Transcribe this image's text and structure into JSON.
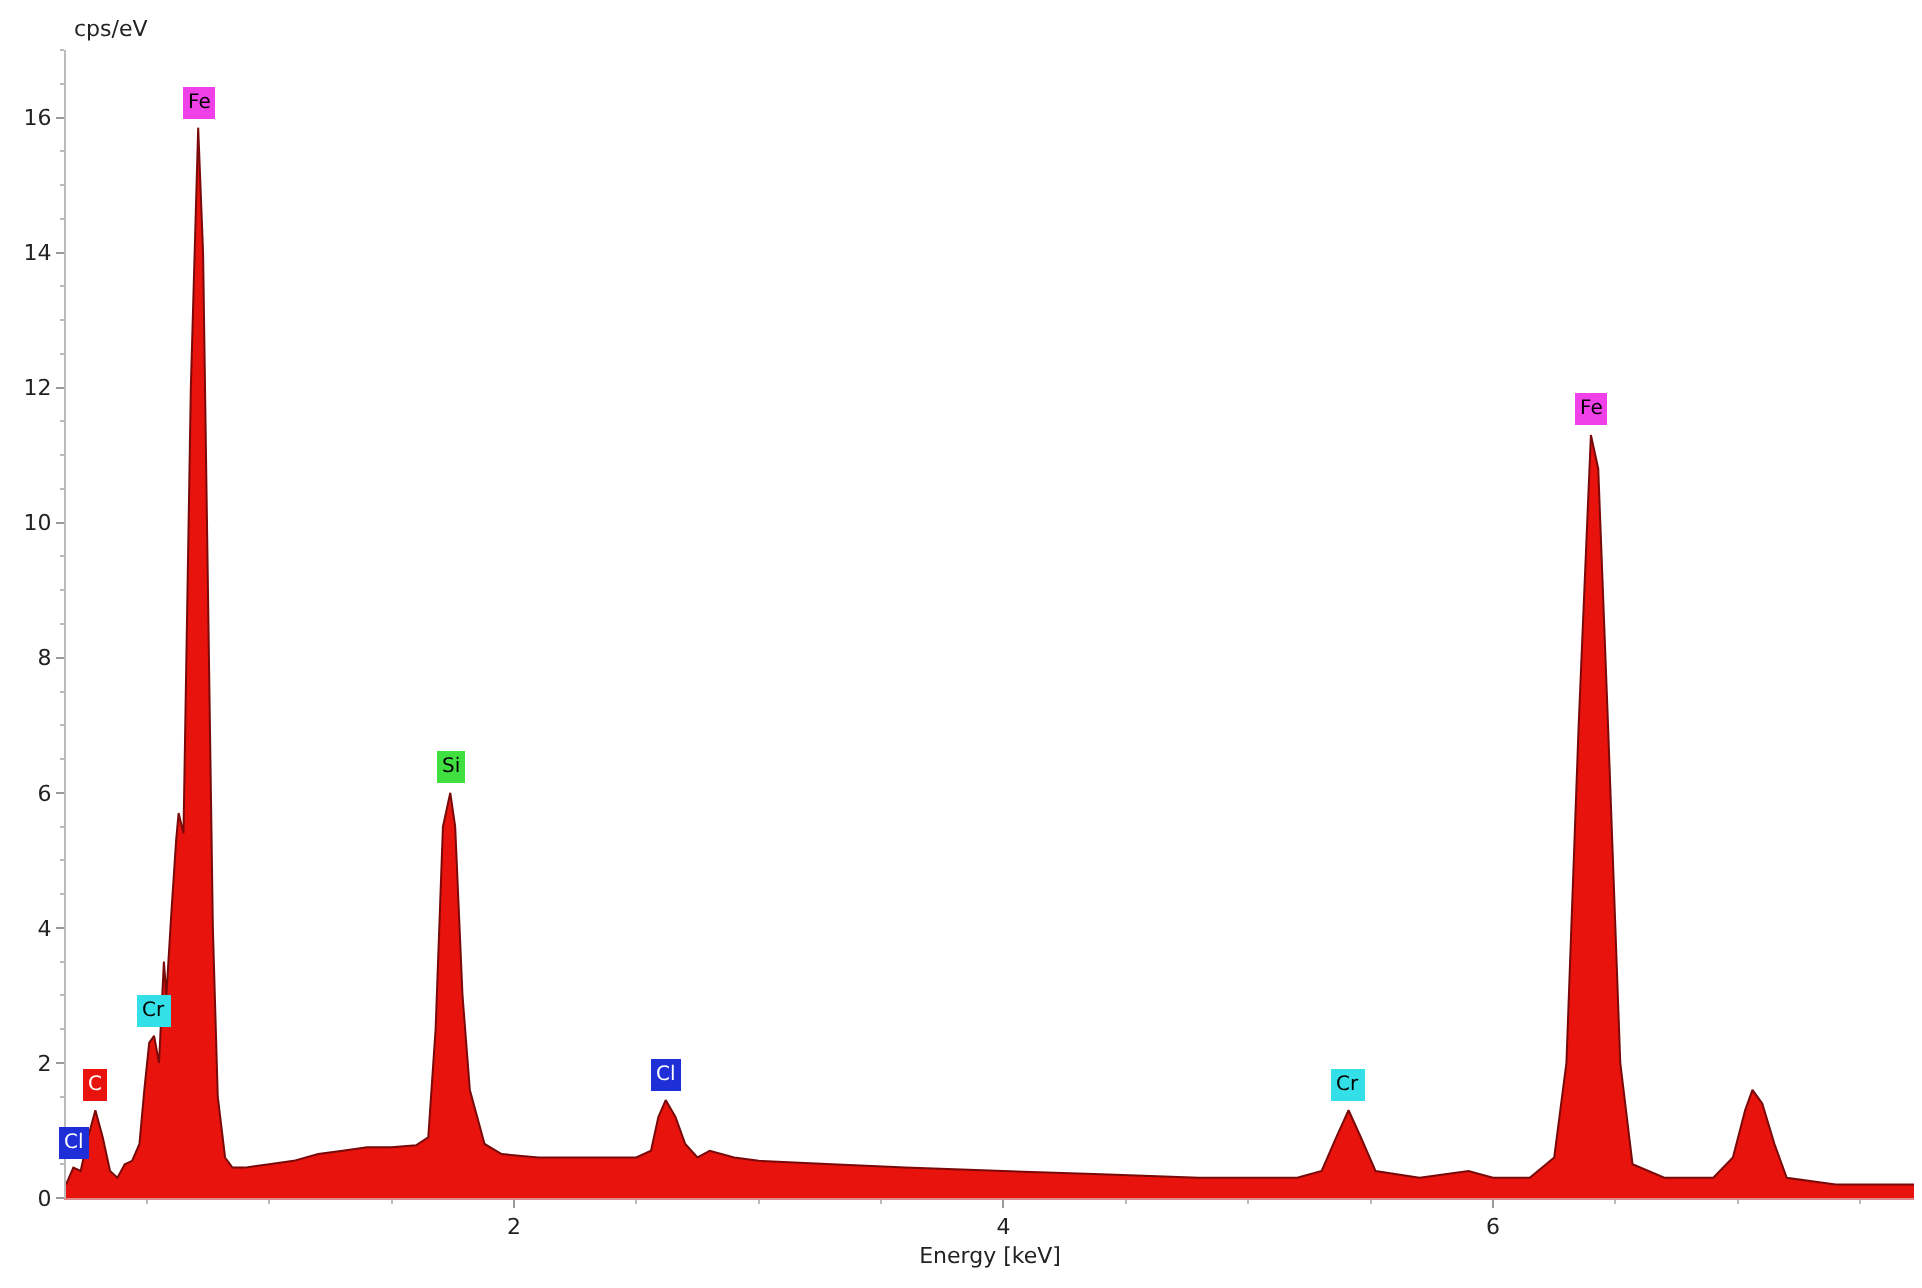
{
  "chart_data": {
    "type": "area",
    "xlabel": "Energy [keV]",
    "ylabel": "cps/eV",
    "color": "#e8130c",
    "x": [
      0.17,
      0.2,
      0.23,
      0.26,
      0.29,
      0.32,
      0.35,
      0.38,
      0.41,
      0.44,
      0.47,
      0.49,
      0.51,
      0.53,
      0.55,
      0.57,
      0.58,
      0.6,
      0.62,
      0.63,
      0.65,
      0.68,
      0.71,
      0.73,
      0.75,
      0.77,
      0.79,
      0.82,
      0.85,
      0.9,
      1.0,
      1.1,
      1.2,
      1.3,
      1.4,
      1.5,
      1.6,
      1.65,
      1.68,
      1.71,
      1.74,
      1.76,
      1.79,
      1.82,
      1.85,
      1.88,
      1.95,
      2.1,
      2.3,
      2.5,
      2.56,
      2.59,
      2.62,
      2.66,
      2.7,
      2.75,
      2.8,
      2.9,
      3.0,
      3.3,
      3.6,
      4.0,
      4.4,
      4.8,
      5.2,
      5.3,
      5.36,
      5.41,
      5.46,
      5.52,
      5.7,
      5.9,
      6.0,
      6.15,
      6.25,
      6.3,
      6.35,
      6.4,
      6.43,
      6.47,
      6.52,
      6.57,
      6.7,
      6.9,
      6.98,
      7.03,
      7.06,
      7.1,
      7.15,
      7.2,
      7.4,
      7.6,
      7.72
    ],
    "values": [
      0.2,
      0.45,
      0.4,
      0.9,
      1.3,
      0.9,
      0.4,
      0.3,
      0.5,
      0.55,
      0.8,
      1.6,
      2.3,
      2.4,
      2.0,
      3.5,
      3.0,
      4.2,
      5.3,
      5.7,
      5.4,
      12,
      15.85,
      14,
      9,
      4,
      1.5,
      0.6,
      0.45,
      0.45,
      0.5,
      0.55,
      0.65,
      0.7,
      0.75,
      0.75,
      0.78,
      0.9,
      2.5,
      5.5,
      6.0,
      5.5,
      3,
      1.6,
      1.2,
      0.8,
      0.65,
      0.6,
      0.6,
      0.6,
      0.7,
      1.2,
      1.45,
      1.2,
      0.8,
      0.6,
      0.7,
      0.6,
      0.55,
      0.5,
      0.45,
      0.4,
      0.35,
      0.3,
      0.3,
      0.4,
      0.9,
      1.3,
      0.9,
      0.4,
      0.3,
      0.4,
      0.3,
      0.3,
      0.6,
      2,
      7,
      11.3,
      10.8,
      7,
      2,
      0.5,
      0.3,
      0.3,
      0.6,
      1.3,
      1.6,
      1.4,
      0.8,
      0.3,
      0.2,
      0.2,
      0.2
    ],
    "xlim": [
      0.17,
      7.72
    ],
    "ylim": [
      0,
      17
    ],
    "xticks": [
      2,
      4,
      6
    ],
    "yticks": [
      0,
      2,
      4,
      6,
      8,
      10,
      12,
      14,
      16
    ],
    "grid": false,
    "marker": "none",
    "annotations": [
      {
        "text": "Cl",
        "x": 0.2,
        "y": 0.45
      },
      {
        "text": "C",
        "x": 0.29,
        "y": 1.3
      },
      {
        "text": "Cr",
        "x": 0.53,
        "y": 2.4
      },
      {
        "text": "Fe",
        "x": 0.71,
        "y": 15.85
      },
      {
        "text": "Si",
        "x": 1.74,
        "y": 6.0
      },
      {
        "text": "Cl",
        "x": 2.62,
        "y": 1.45
      },
      {
        "text": "Cr",
        "x": 5.41,
        "y": 1.3
      },
      {
        "text": "Fe",
        "x": 6.4,
        "y": 11.3
      }
    ]
  }
}
